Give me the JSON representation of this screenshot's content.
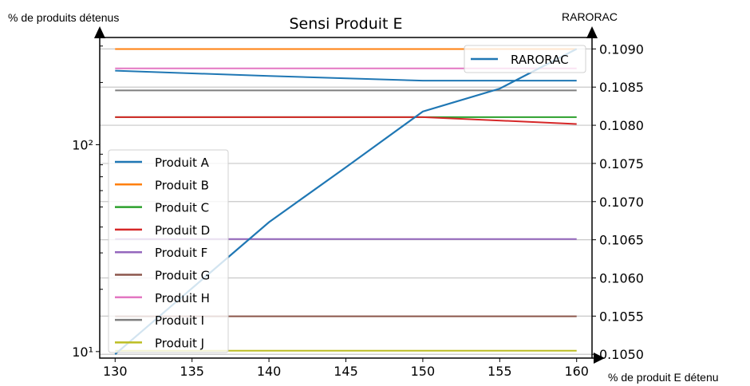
{
  "chart_data": {
    "type": "line",
    "title": "Sensi Produit E",
    "xlabel": "% de produit E détenu",
    "ylabel_left": "% de produits détenus",
    "ylabel_right": "RARORAC",
    "x_ticks": [
      "130",
      "135",
      "140",
      "145",
      "150",
      "155",
      "160"
    ],
    "xlim": [
      129,
      161
    ],
    "y_left_scale": "log",
    "y_left_ticks": [
      "10¹",
      "10²"
    ],
    "y_left_lim": [
      9.3,
      330
    ],
    "y_right_ticks": [
      "0.1050",
      "0.1055",
      "0.1060",
      "0.1065",
      "0.1070",
      "0.1075",
      "0.1080",
      "0.1085",
      "0.1090"
    ],
    "y_right_lim": [
      0.10495,
      0.10915
    ],
    "grid": true,
    "legend_left_position": "lower-left",
    "legend_right_position": "upper-right",
    "series_left": [
      {
        "name": "Produit A",
        "color": "#1f77b4",
        "x": [
          130,
          140,
          150,
          160
        ],
        "y": [
          228,
          215,
          204,
          204
        ]
      },
      {
        "name": "Produit B",
        "color": "#ff7f0e",
        "x": [
          130,
          140,
          150,
          160
        ],
        "y": [
          290,
          290,
          290,
          290
        ]
      },
      {
        "name": "Produit C",
        "color": "#2ca02c",
        "x": [
          130,
          140,
          150,
          160
        ],
        "y": [
          136,
          136,
          136,
          136
        ]
      },
      {
        "name": "Produit D",
        "color": "#d62728",
        "x": [
          130,
          140,
          150,
          160
        ],
        "y": [
          136,
          136,
          136,
          126
        ]
      },
      {
        "name": "Produit F",
        "color": "#9467bd",
        "x": [
          130,
          140,
          150,
          160
        ],
        "y": [
          35,
          35,
          35,
          35
        ]
      },
      {
        "name": "Produit G",
        "color": "#8c564b",
        "x": [
          130,
          140,
          150,
          160
        ],
        "y": [
          14.8,
          14.8,
          14.8,
          14.8
        ]
      },
      {
        "name": "Produit H",
        "color": "#e377c2",
        "x": [
          130,
          140,
          150,
          160
        ],
        "y": [
          234,
          234,
          234,
          234
        ]
      },
      {
        "name": "Produit I",
        "color": "#7f7f7f",
        "x": [
          130,
          140,
          150,
          160
        ],
        "y": [
          183,
          183,
          183,
          183
        ]
      },
      {
        "name": "Produit J",
        "color": "#bcbd22",
        "x": [
          130,
          140,
          150,
          160
        ],
        "y": [
          10.1,
          10.1,
          10.1,
          10.1
        ]
      }
    ],
    "series_right": [
      {
        "name": "RARORAC",
        "color": "#1f77b4",
        "x": [
          130,
          140,
          145,
          150,
          155,
          160
        ],
        "y": [
          0.105,
          0.10673,
          0.10745,
          0.10818,
          0.10848,
          0.109
        ]
      }
    ]
  }
}
